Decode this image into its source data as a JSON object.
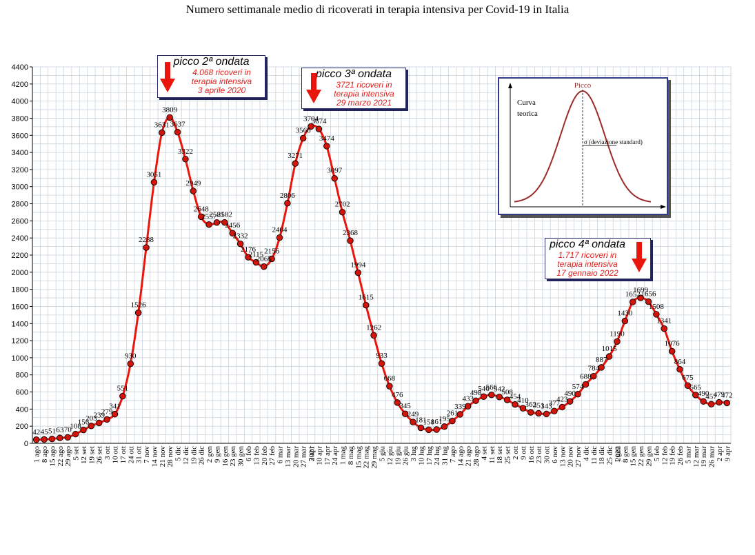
{
  "title": "Numero settimanale medio di ricoverati in terapia intensiva per Covid-19 in Italia",
  "chart_data": {
    "type": "line",
    "title": "Numero settimanale medio di ricoverati in terapia intensiva per Covid-19 in Italia",
    "xlabel": "",
    "ylabel": "",
    "ylim": [
      0,
      4400
    ],
    "y_ticks": [
      0,
      200,
      400,
      600,
      800,
      1000,
      1200,
      1400,
      1600,
      1800,
      2000,
      2200,
      2400,
      2600,
      2800,
      3000,
      3200,
      3400,
      3600,
      3800,
      4000,
      4200,
      4400
    ],
    "grid": true,
    "year_labels": [
      {
        "label": "2021",
        "at_index": 36
      },
      {
        "label": "2022",
        "at_index": 75
      }
    ],
    "categories": [
      "1 ago",
      "8 ago",
      "15 ago",
      "22 ago",
      "29 ago",
      "5 set",
      "12 set",
      "19 set",
      "26 set",
      "3 ott",
      "10 ott",
      "17 ott",
      "24 ott",
      "31 ott",
      "7 nov",
      "14 nov",
      "21 nov",
      "28 nov",
      "5 dic",
      "12 dic",
      "19 dic",
      "26 dic",
      "2 gen",
      "9 gen",
      "16 gen",
      "23 gen",
      "30 gen",
      "6 feb",
      "13 feb",
      "20 feb",
      "27 feb",
      "6 mar",
      "13 mar",
      "20 mar",
      "27 mar",
      "3 apr",
      "10 apr",
      "17 apr",
      "24 apr",
      "1 mag",
      "8 mag",
      "15 mag",
      "22 mag",
      "29 mag",
      "5 giu",
      "12 giu",
      "19 giu",
      "26 giu",
      "3 lug",
      "10 lug",
      "17 lug",
      "24 lug",
      "31 lug",
      "7 ago",
      "14 ago",
      "21 ago",
      "28 ago",
      "4 set",
      "11 set",
      "18 set",
      "25 set",
      "2 ott",
      "9 ott",
      "16 ott",
      "23 ott",
      "30 ott",
      "6 nov",
      "13 nov",
      "20 nov",
      "27 nov",
      "4 dic",
      "11 dic",
      "18 dic",
      "25 dic",
      "1 gen",
      "8 gen",
      "15 gen",
      "22 gen",
      "29 gen",
      "5 feb",
      "12 feb",
      "19 feb",
      "26 feb",
      "5 mar",
      "12 mar",
      "19 mar",
      "26 mar",
      "2 apr",
      "9 apr"
    ],
    "series": [
      {
        "values": [
          42,
          45,
          51,
          63,
          70,
          108,
          156,
          203,
          239,
          279,
          341,
          551,
          930,
          1526,
          2288,
          3051,
          3631,
          3809,
          3637,
          3322,
          2949,
          2648,
          2557,
          2581,
          2582,
          2456,
          2332,
          2176,
          2115,
          2065,
          2156,
          2404,
          2806,
          3271,
          3566,
          3704,
          3674,
          3474,
          3097,
          2702,
          2368,
          1994,
          1615,
          1262,
          933,
          668,
          476,
          345,
          249,
          181,
          158,
          161,
          195,
          261,
          339,
          433,
          498,
          546,
          566,
          542,
          508,
          454,
          410,
          362,
          351,
          343,
          377,
          423,
          490,
          574,
          688,
          784,
          887,
          1015,
          1190,
          1430,
          1652,
          1699,
          1656,
          1508,
          1341,
          1076,
          864,
          675,
          565,
          490,
          457,
          479,
          472
        ],
        "labels": [
          "42",
          "45",
          "51",
          "63",
          "70",
          "108",
          "156",
          "203",
          "239",
          "279",
          "341",
          "551",
          "930",
          "1526",
          "2288",
          "3051",
          "3631",
          "3809",
          "3637",
          "3322",
          "2949",
          "2648",
          "2557",
          "2581",
          "2582",
          "2456",
          "2332",
          "2176",
          "2115",
          "2065",
          "2156",
          "2404",
          "2806",
          "3271",
          "3566",
          "3704",
          "3674",
          "3474",
          "3097",
          "2702",
          "2368",
          "1994",
          "1615",
          "1262",
          "933",
          "668",
          "476",
          "345",
          "249",
          "181",
          "158",
          "161",
          "195",
          "261",
          "339",
          "433",
          "498",
          "546",
          "566",
          "542",
          "508",
          "454",
          "410",
          "362",
          "351",
          "343",
          "377",
          "423",
          "490",
          "574",
          "688",
          "784",
          "887",
          "1015",
          "1190",
          "1430",
          "1652",
          "1699",
          "1656",
          "1508",
          "1341",
          "1076",
          "864",
          "675",
          "565",
          "490",
          "457",
          "479",
          "472"
        ],
        "color": "#e8160c",
        "marker_color": "#d4140a"
      }
    ]
  },
  "annotations": [
    {
      "head": "picco 2ª ondata",
      "lines": [
        "4.068 ricoveri in",
        "terapia intensiva",
        "3 aprile 2020"
      ]
    },
    {
      "head": "picco 3ª ondata",
      "lines": [
        "3721 ricoveri in",
        "terapia intensiva",
        "29 marzo 2021"
      ]
    },
    {
      "head": "picco 4ª ondata",
      "lines": [
        "1.717 ricoveri in",
        "terapia intensiva",
        "17 gennaio 2022"
      ]
    }
  ],
  "inset": {
    "peak_label": "Picco",
    "curve_label_1": "Curva",
    "curve_label_2": "teorica",
    "sigma_label": "σ  (deviazione standard)"
  }
}
